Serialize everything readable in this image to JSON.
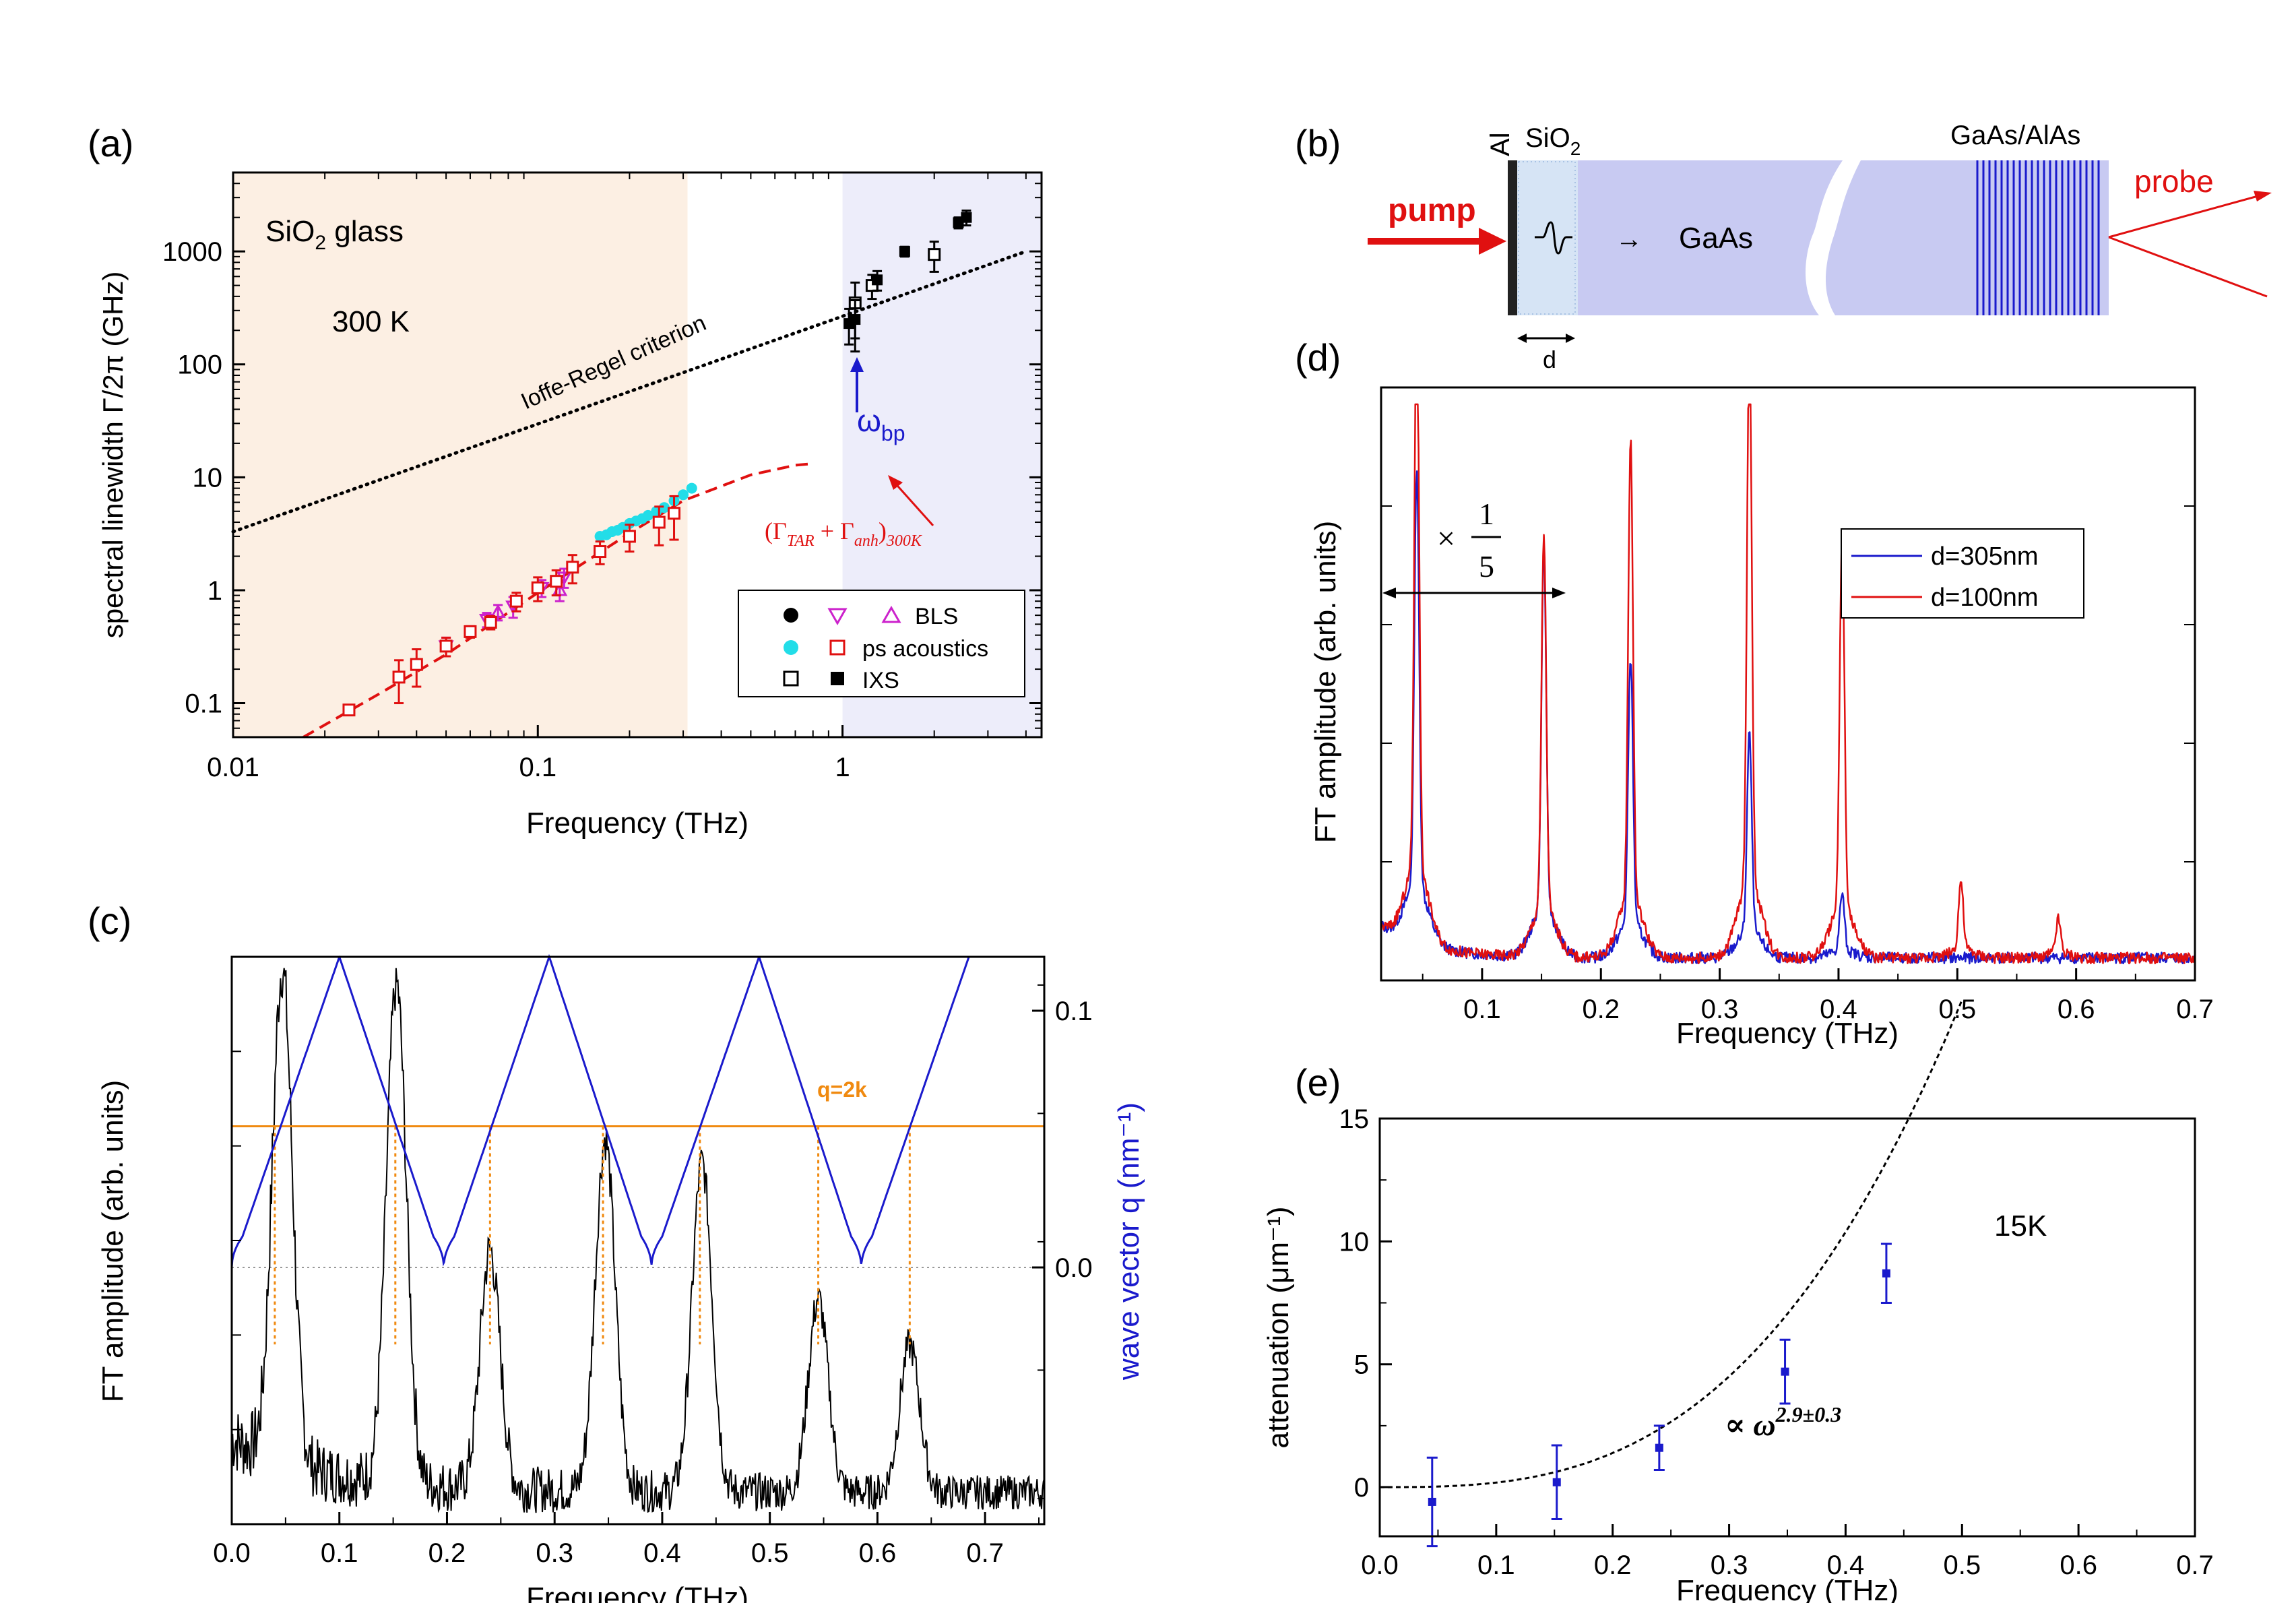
{
  "figure": {
    "colors": {
      "ink": "#000000",
      "blue": "#1a1acc",
      "red": "#e01010",
      "cyan": "#22dde8",
      "magenta": "#cc22cc",
      "orange": "#f08a10",
      "tan": "#fcefe3",
      "lavender": "#ededfa",
      "slab": "#c8caf2",
      "sio2": "#d6e4f5"
    }
  },
  "chart_data": [
    {
      "panel": "(a)",
      "type": "scatter",
      "xlabel": "Frequency (THz)",
      "ylabel": "spectral linewidth Γ/2π (GHz)",
      "xscale": "log",
      "yscale": "log",
      "xlim": [
        0.01,
        4.5
      ],
      "ylim": [
        0.05,
        5000
      ],
      "xticks": [
        0.01,
        0.1,
        1
      ],
      "xtick_labels": [
        "0.01",
        "0.1",
        "1"
      ],
      "yticks": [
        0.1,
        1,
        10,
        100,
        1000
      ],
      "ytick_labels": [
        "0.1",
        "1",
        "10",
        "100",
        "1000"
      ],
      "regions": [
        {
          "name": "acoustic",
          "from": 0.01,
          "to": 0.31,
          "color": "#fcefe3"
        },
        {
          "name": "boson-peak",
          "from": 1.0,
          "to": 4.5,
          "color": "#ededfa"
        }
      ],
      "annotations": {
        "material": "SiO",
        "material_sub": "2",
        "material_suffix": " glass",
        "temperature": "300 K",
        "ioffe": "Ioffe-Regel criterion",
        "omega": "ω",
        "omega_sub": "bp",
        "fit_label": "(Γ_TAR + Γ_anh)_300K"
      },
      "ioffe_line": {
        "x": [
          0.01,
          4.0
        ],
        "y": [
          3.3,
          1000
        ]
      },
      "fit_curve": {
        "x": [
          0.017,
          0.03,
          0.05,
          0.1,
          0.2,
          0.3,
          0.5,
          0.7,
          0.8
        ],
        "y": [
          0.05,
          0.12,
          0.27,
          0.95,
          3.2,
          6.2,
          10.5,
          12.8,
          13.2
        ]
      },
      "series": [
        {
          "name": "BLS filled circle",
          "marker": "circle-filled",
          "color": "#000000",
          "points": [
            [
              0.024,
              0.088,
              0.004
            ],
            [
              0.035,
              0.17,
              0.01
            ]
          ]
        },
        {
          "name": "BLS down triangle",
          "marker": "tri-down",
          "color": "#cc22cc",
          "points": [
            [
              0.05,
              0.32,
              0.06
            ],
            [
              0.068,
              0.55,
              0.08
            ],
            [
              0.083,
              0.72,
              0.15
            ],
            [
              0.103,
              1.05,
              0.18
            ],
            [
              0.122,
              1.3,
              0.25
            ]
          ]
        },
        {
          "name": "BLS up triangle",
          "marker": "tri-up",
          "color": "#cc22cc",
          "points": [
            [
              0.074,
              0.64,
              0.1
            ],
            [
              0.118,
              1.0,
              0.2
            ]
          ]
        },
        {
          "name": "ps acoustics cyan",
          "marker": "circle-filled",
          "color": "#22dde8",
          "points": [
            [
              0.16,
              3.0
            ],
            [
              0.168,
              3.1
            ],
            [
              0.175,
              3.3
            ],
            [
              0.183,
              3.4
            ],
            [
              0.19,
              3.6
            ],
            [
              0.2,
              3.9
            ],
            [
              0.21,
              4.1
            ],
            [
              0.22,
              4.3
            ],
            [
              0.23,
              4.6
            ],
            [
              0.245,
              5.0
            ],
            [
              0.26,
              5.4
            ],
            [
              0.28,
              6.2
            ],
            [
              0.3,
              7.0
            ],
            [
              0.32,
              8.0
            ]
          ]
        },
        {
          "name": "ps acoustics red square",
          "marker": "square-open",
          "color": "#e01010",
          "points": [
            [
              0.024,
              0.087,
              0.004
            ],
            [
              0.035,
              0.17,
              0.07
            ],
            [
              0.04,
              0.22,
              0.08
            ],
            [
              0.05,
              0.32,
              0.06
            ],
            [
              0.06,
              0.43,
              0.05
            ],
            [
              0.07,
              0.52,
              0.07
            ],
            [
              0.085,
              0.8,
              0.15
            ],
            [
              0.1,
              1.05,
              0.25
            ],
            [
              0.115,
              1.2,
              0.3
            ],
            [
              0.13,
              1.6,
              0.45
            ],
            [
              0.16,
              2.2,
              0.5
            ],
            [
              0.2,
              3.0,
              0.8
            ],
            [
              0.25,
              4.0,
              1.5
            ],
            [
              0.28,
              4.8,
              2.0
            ]
          ]
        },
        {
          "name": "IXS open square",
          "marker": "square-open",
          "color": "#000000",
          "points": [
            [
              1.1,
              350,
              180
            ],
            [
              1.25,
              500,
              120
            ],
            [
              2.0,
              940,
              280
            ]
          ]
        },
        {
          "name": "IXS filled square",
          "marker": "square-filled",
          "color": "#000000",
          "points": [
            [
              1.05,
              230,
              80
            ],
            [
              1.1,
              250,
              120
            ],
            [
              1.3,
              560,
              110
            ],
            [
              1.6,
              1000,
              100
            ],
            [
              2.4,
              1800,
              200
            ],
            [
              2.55,
              2000,
              300
            ]
          ]
        }
      ],
      "legend": {
        "placement": "bottom-right",
        "entries": [
          "BLS",
          "ps acoustics",
          "IXS"
        ]
      }
    },
    {
      "panel": "(b)",
      "type": "schematic",
      "labels": {
        "al": "Al",
        "sio2": "SiO",
        "sio2_sub": "2",
        "gaas": "GaAs",
        "sl": "GaAs/AlAs",
        "pump": "pump",
        "probe": "probe",
        "d": "d",
        "arrow": "→"
      }
    },
    {
      "panel": "(c)",
      "type": "line",
      "xlabel": "Frequency (THz)",
      "ylabel": "FT amplitude (arb. units)",
      "y2label": "wave vector q (nm⁻¹)",
      "xlim": [
        0,
        0.755
      ],
      "xticks": [
        0.0,
        0.1,
        0.2,
        0.3,
        0.4,
        0.5,
        0.6,
        0.7
      ],
      "xtick_labels": [
        "0.0",
        "0.1",
        "0.2",
        "0.3",
        "0.4",
        "0.5",
        "0.6",
        "0.7"
      ],
      "y2lim": [
        -0.1,
        0.121
      ],
      "y2ticks": [
        0.0,
        0.1
      ],
      "y2tick_labels": [
        "0.0",
        "0.1"
      ],
      "q_line": {
        "value": 0.055,
        "label": "q=2k"
      },
      "dispersion": {
        "zone_edges": [
          0.0,
          0.197,
          0.39,
          0.585
        ],
        "peak_freqs": [
          0.1,
          0.295,
          0.49,
          0.685
        ],
        "q_top": 0.121
      },
      "crossings": [
        0.04,
        0.152,
        0.24,
        0.345,
        0.435,
        0.545,
        0.63
      ],
      "spectrum_peaks": [
        {
          "f": 0.047,
          "a": 0.87
        },
        {
          "f": 0.153,
          "a": 0.88
        },
        {
          "f": 0.24,
          "a": 0.42
        },
        {
          "f": 0.347,
          "a": 0.62
        },
        {
          "f": 0.437,
          "a": 0.58
        },
        {
          "f": 0.545,
          "a": 0.34
        },
        {
          "f": 0.63,
          "a": 0.26
        }
      ]
    },
    {
      "panel": "(d)",
      "type": "line",
      "xlabel": "Frequency (THz)",
      "ylabel": "FT amplitude (arb. units)",
      "xlim": [
        0.015,
        0.7
      ],
      "xticks": [
        0.1,
        0.2,
        0.3,
        0.4,
        0.5,
        0.6,
        0.7
      ],
      "xtick_labels": [
        "0.1",
        "0.2",
        "0.3",
        "0.4",
        "0.5",
        "0.6",
        "0.7"
      ],
      "scale_label_times": "×",
      "scale_num": "1",
      "scale_den": "5",
      "series": [
        {
          "name": "d=305nm",
          "color": "#1a1acc",
          "peaks": [
            {
              "f": 0.045,
              "a": 0.74
            },
            {
              "f": 0.152,
              "a": 0.64
            },
            {
              "f": 0.225,
              "a": 0.47
            },
            {
              "f": 0.325,
              "a": 0.35
            },
            {
              "f": 0.403,
              "a": 0.1
            }
          ]
        },
        {
          "name": "d=100nm",
          "color": "#e01010",
          "peaks": [
            {
              "f": 0.045,
              "a": 1.0
            },
            {
              "f": 0.152,
              "a": 0.66
            },
            {
              "f": 0.225,
              "a": 0.81
            },
            {
              "f": 0.325,
              "a": 0.98
            },
            {
              "f": 0.403,
              "a": 0.66
            },
            {
              "f": 0.503,
              "a": 0.12
            },
            {
              "f": 0.585,
              "a": 0.06
            }
          ]
        }
      ]
    },
    {
      "panel": "(e)",
      "type": "scatter",
      "xlabel": "Frequency (THz)",
      "ylabel": "attenuation (μm⁻¹)",
      "xlim": [
        0,
        0.7
      ],
      "ylim": [
        -2,
        15
      ],
      "xticks": [
        0.0,
        0.1,
        0.2,
        0.3,
        0.4,
        0.5,
        0.6,
        0.7
      ],
      "xtick_labels": [
        "0.0",
        "0.1",
        "0.2",
        "0.3",
        "0.4",
        "0.5",
        "0.6",
        "0.7"
      ],
      "yticks": [
        0,
        5,
        10,
        15
      ],
      "ytick_labels": [
        "0",
        "5",
        "10",
        "15"
      ],
      "temperature": "15K",
      "fit_label": "∝ ω",
      "fit_exponent": "2.9±0.3",
      "fit": {
        "a": 148.0,
        "power": 2.9,
        "xmax": 0.5
      },
      "points": [
        [
          0.045,
          -0.6,
          1.8
        ],
        [
          0.152,
          0.2,
          1.5
        ],
        [
          0.24,
          1.6,
          0.9
        ],
        [
          0.348,
          4.7,
          1.3
        ],
        [
          0.435,
          8.7,
          1.2
        ]
      ]
    }
  ]
}
